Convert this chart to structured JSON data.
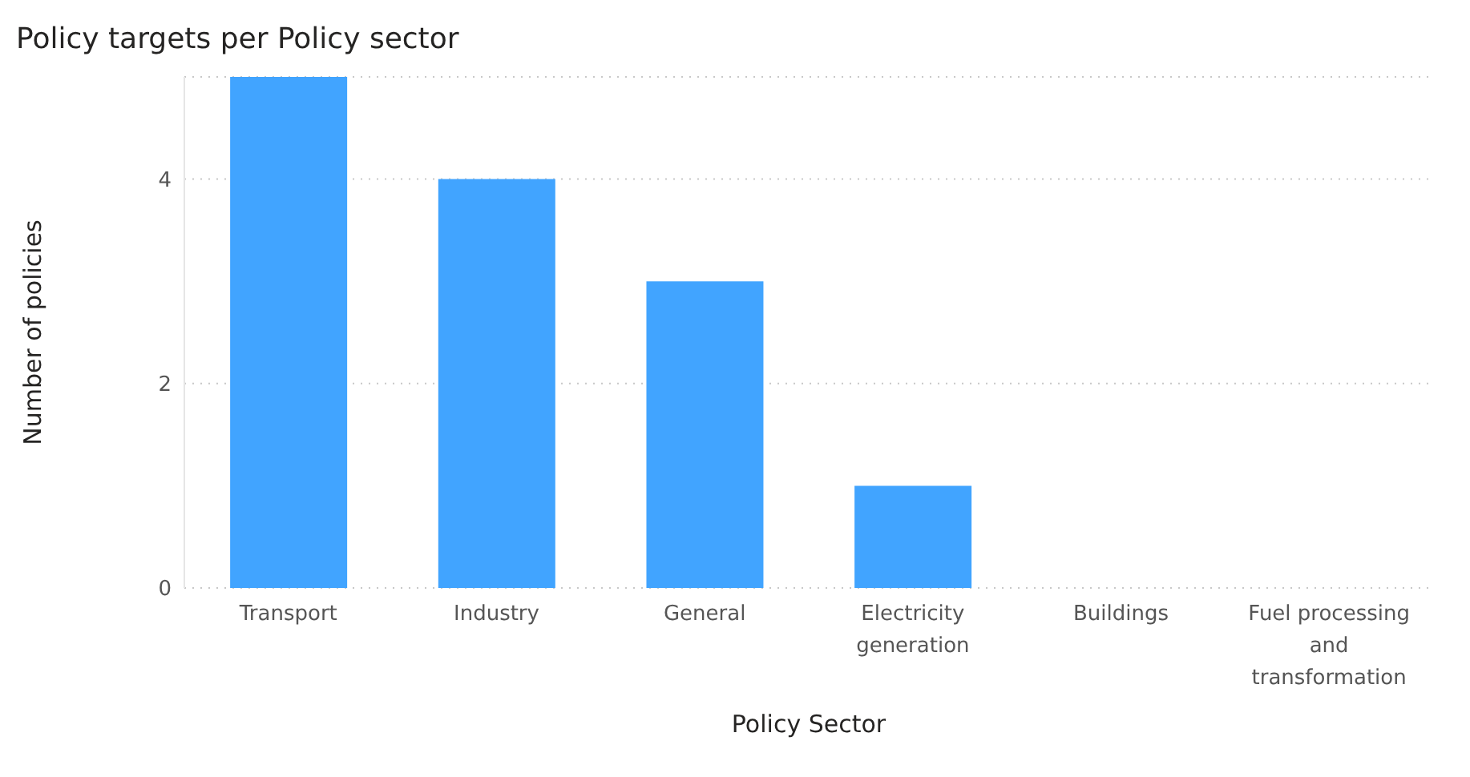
{
  "chart_data": {
    "type": "bar",
    "title": "Policy targets per Policy sector",
    "xlabel": "Policy Sector",
    "ylabel": "Number of policies",
    "categories": [
      "Transport",
      "Industry",
      "General",
      "Electricity generation",
      "Buildings",
      "Fuel processing and transformation"
    ],
    "values": [
      5,
      4,
      3,
      1,
      0,
      0
    ],
    "color": "#41a4ff",
    "ylim": [
      0,
      5
    ],
    "yticks": [
      0,
      2,
      4
    ],
    "grid": "y",
    "legend": false
  }
}
